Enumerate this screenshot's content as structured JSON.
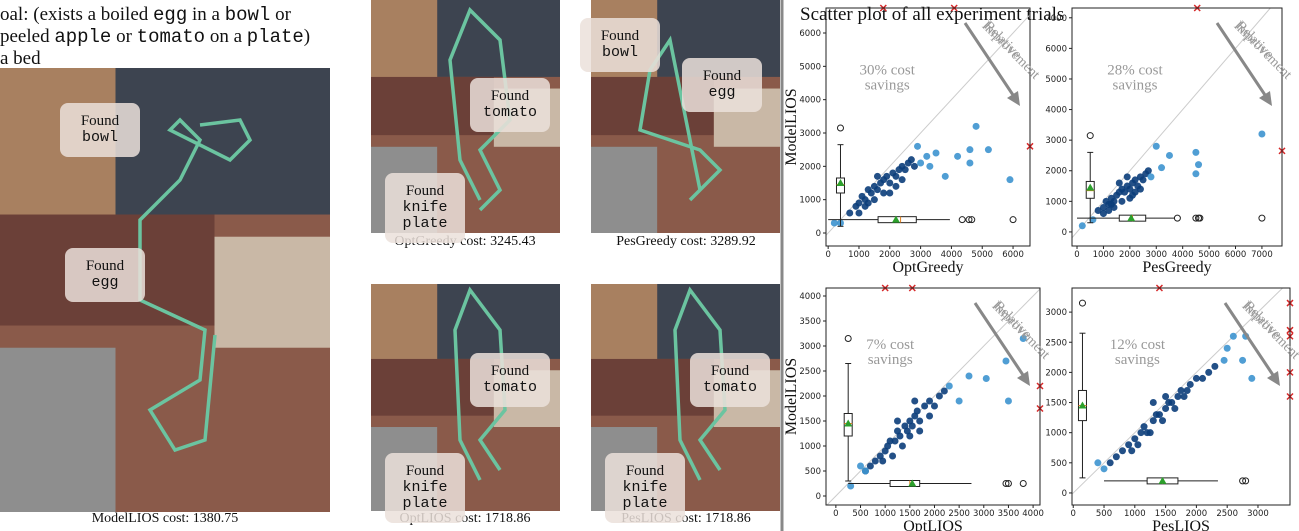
{
  "goal_lines": [
    [
      "oal: (exists a boiled ",
      "egg",
      " in a ",
      "bowl",
      " or"
    ],
    [
      "peeled ",
      "apple",
      " or ",
      "tomato",
      " on a ",
      "plate",
      ")"
    ],
    [
      "a bed"
    ]
  ],
  "panels": [
    {
      "caption": "ModelLIOS cost: 1380.75",
      "labels": [
        [
          "Found",
          "bowl"
        ],
        [
          "Found",
          "egg"
        ]
      ]
    },
    {
      "caption": "OptGreedy cost: 3245.43",
      "labels": [
        [
          "Found",
          "tomato"
        ],
        [
          "Found",
          "knife",
          "plate"
        ]
      ]
    },
    {
      "caption": "PesGreedy cost: 3289.92",
      "labels": [
        [
          "Found",
          "bowl"
        ],
        [
          "Found",
          "egg"
        ]
      ]
    },
    {
      "caption": "OptLIOS cost: 1718.86",
      "labels": [
        [
          "Found",
          "tomato"
        ],
        [
          "Found",
          "knife",
          "plate"
        ]
      ]
    },
    {
      "caption": "PesLIOS cost: 1718.86",
      "labels": [
        [
          "Found",
          "tomato"
        ],
        [
          "Found",
          "knife",
          "plate"
        ]
      ]
    }
  ],
  "scatter_title": "Scatter plot of all experiment trials",
  "chart_data": [
    {
      "type": "scatter",
      "xlabel": "OptGreedy",
      "ylabel": "ModelLIOS",
      "savings_text": [
        "30% cost",
        "savings"
      ],
      "arrow_text": [
        "Relative",
        "Improvement"
      ],
      "xlim": [
        -70,
        6550
      ],
      "ylim": [
        -390,
        6750
      ],
      "xticks": [
        0,
        1000,
        2000,
        3000,
        4000,
        5000,
        6000
      ],
      "yticks": [
        0,
        1000,
        2000,
        3000,
        4000,
        5000,
        6000
      ],
      "series": [
        {
          "color": "#0b3d7a",
          "x": [
            700,
            900,
            1000,
            1100,
            1200,
            1300,
            1400,
            1500,
            1600,
            1700,
            1800,
            1900,
            2000,
            2100,
            2200,
            2300,
            2400,
            2500,
            2600,
            1500,
            1800,
            2000,
            2200,
            1200,
            2700,
            2800,
            1000,
            1600,
            2400,
            1300
          ],
          "y": [
            600,
            800,
            900,
            1100,
            1000,
            1300,
            1200,
            1400,
            1300,
            1500,
            1600,
            1700,
            1500,
            1800,
            1700,
            1900,
            2000,
            1900,
            2100,
            1000,
            1200,
            1200,
            1400,
            800,
            2200,
            2000,
            600,
            1700,
            1600,
            900
          ]
        },
        {
          "color": "#3d94cf",
          "x": [
            3000,
            3200,
            3500,
            3800,
            4200,
            4600,
            4600,
            5200,
            5900,
            4800,
            3300,
            2900,
            400,
            200
          ],
          "y": [
            2100,
            2300,
            2400,
            1700,
            2300,
            2100,
            2500,
            2500,
            1600,
            3200,
            2000,
            2600,
            300,
            300
          ]
        }
      ],
      "ybox": {
        "position": 400,
        "whislo": 200,
        "q1": 1200,
        "med": 1450,
        "q3": 1650,
        "whishi": 2650,
        "mean": 1500,
        "fliers": [
          3150
        ]
      },
      "xbox": {
        "position": 400,
        "whislo": 0,
        "q1": 1620,
        "med": 2350,
        "q3": 2860,
        "whishi": 3950,
        "mean": 2200,
        "fliers": [
          4350,
          4570,
          4660,
          6000
        ]
      },
      "top_outliers_x": [
        1790,
        4090
      ],
      "right_outliers_y": [
        2600
      ]
    },
    {
      "type": "scatter",
      "xlabel": "PesGreedy",
      "savings_text": [
        "28% cost",
        "savings"
      ],
      "arrow_text": [
        "Relative",
        "Improvement"
      ],
      "xlim": [
        -190,
        7760
      ],
      "ylim": [
        -460,
        7320
      ],
      "xticks": [
        0,
        1000,
        2000,
        3000,
        4000,
        5000,
        6000,
        7000
      ],
      "yticks": [
        0,
        1000,
        2000,
        3000,
        4000,
        5000,
        6000,
        7000
      ],
      "series": [
        {
          "color": "#0b3d7a",
          "x": [
            800,
            1000,
            1100,
            1200,
            1300,
            1400,
            1500,
            1600,
            1700,
            1800,
            1900,
            2000,
            2100,
            2200,
            2300,
            2400,
            2500,
            2600,
            1400,
            1700,
            2000,
            2200,
            1200,
            2700,
            1000,
            1600,
            2400,
            1300,
            1900,
            2100
          ],
          "y": [
            700,
            800,
            1000,
            900,
            1100,
            1000,
            1200,
            1300,
            1400,
            1300,
            1500,
            1400,
            1600,
            1700,
            1500,
            1800,
            1700,
            1900,
            800,
            1000,
            1100,
            1300,
            700,
            2000,
            600,
            1600,
            1400,
            900,
            1800,
            1200
          ]
        },
        {
          "color": "#3d94cf",
          "x": [
            4500,
            4600,
            4500,
            3200,
            3500,
            7000,
            3000,
            200,
            2800,
            600
          ],
          "y": [
            2600,
            2200,
            1900,
            2100,
            2500,
            3200,
            2800,
            200,
            1800,
            400
          ]
        }
      ],
      "ybox": {
        "position": 500,
        "whislo": 300,
        "q1": 1100,
        "med": 1350,
        "q3": 1650,
        "whishi": 2600,
        "mean": 1450,
        "fliers": [
          3150
        ]
      },
      "xbox": {
        "position": 450,
        "whislo": 0,
        "q1": 1600,
        "med": 2100,
        "q3": 2600,
        "whishi": 3700,
        "mean": 2050,
        "fliers": [
          3800,
          4500,
          4600,
          4650,
          7000
        ]
      },
      "top_outliers_x": [
        4550
      ],
      "right_outliers_y": [
        2650
      ]
    },
    {
      "type": "scatter",
      "xlabel": "OptLIOS",
      "ylabel": "ModelLIOS",
      "savings_text": [
        "7% cost",
        "savings"
      ],
      "arrow_text": [
        "Relative",
        "Improvement"
      ],
      "xlim": [
        -200,
        4140
      ],
      "ylim": [
        -180,
        4160
      ],
      "xticks": [
        0,
        500,
        1000,
        1500,
        2000,
        2500,
        3000,
        3500,
        4000
      ],
      "yticks": [
        0,
        500,
        1000,
        1500,
        2000,
        2500,
        3000,
        3500,
        4000
      ],
      "series": [
        {
          "color": "#0b3d7a",
          "x": [
            600,
            700,
            800,
            900,
            1000,
            1050,
            1100,
            1200,
            1250,
            1300,
            1400,
            1450,
            1500,
            1550,
            1600,
            1650,
            1700,
            1800,
            1900,
            2000,
            2100,
            1150,
            1350,
            1500,
            1700,
            1900,
            950,
            1250,
            1600,
            2200
          ],
          "y": [
            500,
            600,
            700,
            800,
            900,
            1000,
            1100,
            1100,
            1300,
            1200,
            1400,
            1300,
            1500,
            1400,
            1600,
            1700,
            1500,
            1800,
            1900,
            1800,
            2000,
            800,
            1000,
            1200,
            1300,
            1600,
            700,
            1500,
            1900,
            2100
          ]
        },
        {
          "color": "#3d94cf",
          "x": [
            3800,
            3450,
            3500,
            3050,
            2700,
            300,
            500,
            600,
            2300,
            2500
          ],
          "y": [
            3150,
            2700,
            1900,
            2350,
            2400,
            200,
            600,
            500,
            2200,
            1900
          ]
        }
      ],
      "ybox": {
        "position": 250,
        "whislo": 300,
        "q1": 1200,
        "med": 1450,
        "q3": 1650,
        "whishi": 2650,
        "mean": 1450,
        "fliers": [
          3150
        ]
      },
      "xbox": {
        "position": 250,
        "whislo": 250,
        "q1": 1100,
        "med": 1500,
        "q3": 1700,
        "whishi": 2750,
        "mean": 1550,
        "fliers": [
          3450,
          3500,
          3800
        ]
      },
      "top_outliers_x": [
        1000,
        1550
      ],
      "right_outliers_y": [
        2200,
        1750
      ]
    },
    {
      "type": "scatter",
      "xlabel": "PesLIOS",
      "savings_text": [
        "12% cost",
        "savings"
      ],
      "arrow_text": [
        "Relative",
        "Improvement"
      ],
      "xlim": [
        -20,
        3520
      ],
      "ylim": [
        -200,
        3400
      ],
      "xticks": [
        0,
        500,
        1000,
        1500,
        2000,
        2500,
        3000
      ],
      "yticks": [
        0,
        500,
        1000,
        1500,
        2000,
        2500,
        3000
      ],
      "series": [
        {
          "color": "#0b3d7a",
          "x": [
            600,
            700,
            800,
            900,
            1000,
            1100,
            1150,
            1200,
            1300,
            1350,
            1400,
            1500,
            1550,
            1600,
            1700,
            1750,
            1800,
            1900,
            2000,
            2100,
            1050,
            1250,
            1450,
            1650,
            1850,
            950,
            1300,
            1500,
            2200,
            2300
          ],
          "y": [
            500,
            600,
            700,
            800,
            900,
            1000,
            1100,
            1000,
            1200,
            1300,
            1300,
            1400,
            1500,
            1500,
            1600,
            1700,
            1600,
            1800,
            1900,
            1900,
            800,
            1000,
            1200,
            1400,
            1700,
            700,
            1500,
            1600,
            2000,
            2100
          ]
        },
        {
          "color": "#3d94cf",
          "x": [
            2900,
            2750,
            2800,
            2600,
            2450,
            500,
            400,
            2500
          ],
          "y": [
            1900,
            2200,
            2600,
            2600,
            2200,
            400,
            500,
            2400
          ]
        }
      ],
      "ybox": {
        "position": 150,
        "whislo": 250,
        "q1": 1200,
        "med": 1450,
        "q3": 1700,
        "whishi": 2650,
        "mean": 1450,
        "fliers": [
          3150
        ]
      },
      "xbox": {
        "position": 200,
        "whislo": 500,
        "q1": 1200,
        "med": 1450,
        "q3": 1700,
        "whishi": 2350,
        "mean": 1450,
        "fliers": [
          2750,
          2800
        ]
      },
      "top_outliers_x": [
        1400
      ],
      "right_outliers_y": [
        3150,
        2700,
        2600,
        2000,
        1600
      ]
    }
  ]
}
